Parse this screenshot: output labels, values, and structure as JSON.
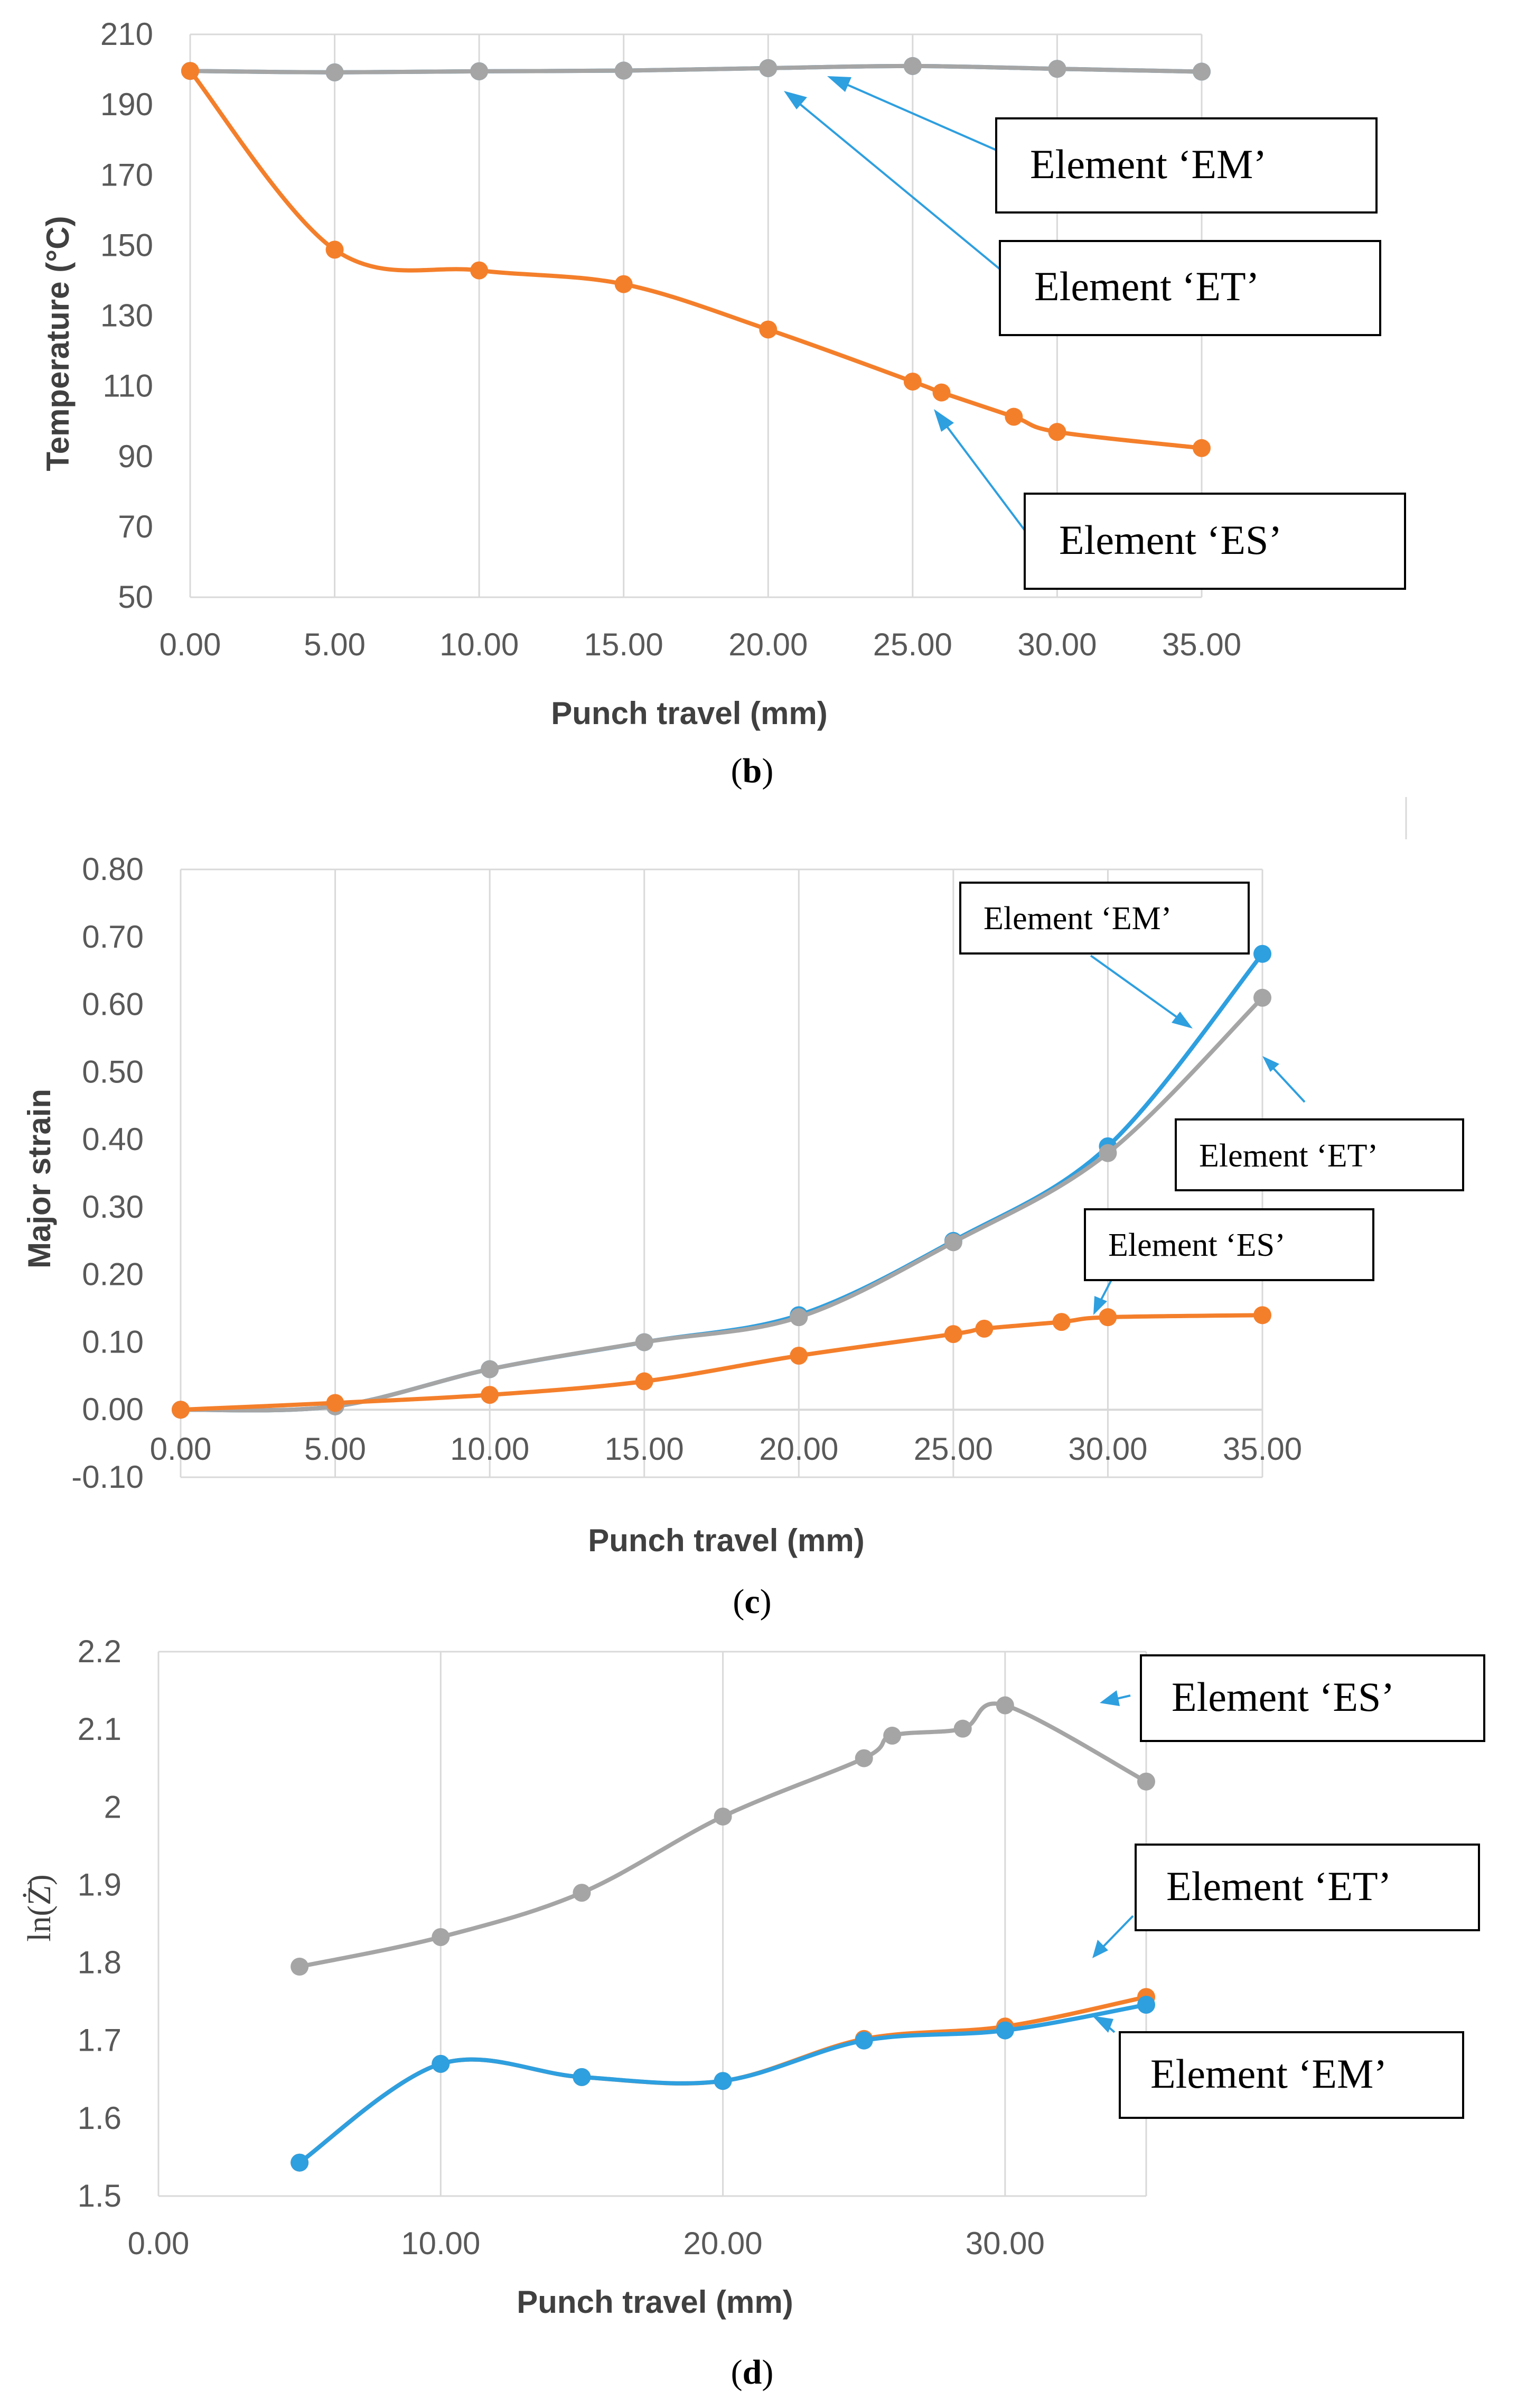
{
  "colors": {
    "em": "#2e9fdf",
    "et": "#a5a5a5",
    "es": "#f47f2b",
    "grid": "#d9d9d9"
  },
  "chart_data": [
    {
      "type": "line",
      "panel": "b",
      "caption_letter": "b",
      "title": "",
      "xlabel": "Punch travel (mm)",
      "ylabel": "Temperature (°C)",
      "xlim": [
        0,
        35
      ],
      "ylim": [
        50,
        210
      ],
      "xticks": [
        0,
        5,
        10,
        15,
        20,
        25,
        30,
        35
      ],
      "xtick_labels": [
        "0.00",
        "5.00",
        "10.00",
        "15.00",
        "20.00",
        "25.00",
        "30.00",
        "35.00"
      ],
      "yticks": [
        50,
        70,
        90,
        110,
        130,
        150,
        170,
        190,
        210
      ],
      "ytick_labels": [
        "50",
        "70",
        "90",
        "110",
        "130",
        "150",
        "170",
        "190",
        "210"
      ],
      "grid": "vertical",
      "series": [
        {
          "name": "Element 'EM'",
          "color_key": "em",
          "x": [
            0,
            5,
            10,
            15,
            20,
            25,
            30,
            35
          ],
          "y": [
            199.6,
            199.2,
            199.5,
            199.7,
            200.4,
            201.0,
            200.2,
            199.4
          ]
        },
        {
          "name": "Element 'ET'",
          "color_key": "et",
          "x": [
            0,
            5,
            10,
            15,
            20,
            25,
            30,
            35
          ],
          "y": [
            199.6,
            199.2,
            199.5,
            199.7,
            200.4,
            201.0,
            200.2,
            199.4
          ]
        },
        {
          "name": "Element 'ES'",
          "color_key": "es",
          "x": [
            0,
            5,
            10,
            15,
            20,
            25,
            26,
            28.5,
            30,
            35
          ],
          "y": [
            199.6,
            148.8,
            142.9,
            139.0,
            126.1,
            111.3,
            108.2,
            101.3,
            97.0,
            92.4
          ]
        }
      ],
      "annotations": [
        {
          "text": "Element ‘EM’",
          "target": [
            22,
            200.4
          ]
        },
        {
          "text": "Element ‘ET’",
          "target": [
            20.5,
            199.0
          ]
        },
        {
          "text": "Element ‘ES’",
          "target": [
            25.5,
            108.0
          ]
        }
      ]
    },
    {
      "type": "line",
      "panel": "c",
      "caption_letter": "c",
      "title": "",
      "xlabel": "Punch travel (mm)",
      "ylabel": "Major strain",
      "xlim": [
        0,
        35
      ],
      "ylim": [
        -0.1,
        0.8
      ],
      "xticks": [
        0,
        5,
        10,
        15,
        20,
        25,
        30,
        35
      ],
      "xtick_labels": [
        "0.00",
        "5.00",
        "10.00",
        "15.00",
        "20.00",
        "25.00",
        "30.00",
        "35.00"
      ],
      "yticks": [
        -0.1,
        0.0,
        0.1,
        0.2,
        0.3,
        0.4,
        0.5,
        0.6,
        0.7,
        0.8
      ],
      "ytick_labels": [
        "-0.10",
        "0.00",
        "0.10",
        "0.20",
        "0.30",
        "0.40",
        "0.50",
        "0.60",
        "0.70",
        "0.80"
      ],
      "grid": "vertical",
      "series": [
        {
          "name": "Element 'EM'",
          "color_key": "em",
          "x": [
            0,
            5,
            10,
            15,
            20,
            25,
            30,
            35
          ],
          "y": [
            0.0,
            0.005,
            0.06,
            0.1,
            0.14,
            0.25,
            0.39,
            0.675
          ]
        },
        {
          "name": "Element 'ET'",
          "color_key": "et",
          "x": [
            0,
            5,
            10,
            15,
            20,
            25,
            30,
            35
          ],
          "y": [
            0.0,
            0.005,
            0.06,
            0.1,
            0.137,
            0.248,
            0.38,
            0.61
          ]
        },
        {
          "name": "Element 'ES'",
          "color_key": "es",
          "x": [
            0,
            5,
            10,
            15,
            20,
            25,
            26,
            28.5,
            30,
            35
          ],
          "y": [
            0.0,
            0.01,
            0.022,
            0.042,
            0.08,
            0.112,
            0.12,
            0.13,
            0.137,
            0.14
          ]
        }
      ],
      "annotations": [
        {
          "text": "Element ‘EM’",
          "target": [
            32.5,
            0.58
          ]
        },
        {
          "text": "Element ‘ET’",
          "target": [
            34.8,
            0.535
          ]
        },
        {
          "text": "Element ‘ES’",
          "target": [
            29.2,
            0.145
          ]
        }
      ]
    },
    {
      "type": "line",
      "panel": "d",
      "caption_letter": "d",
      "title": "",
      "xlabel": "Punch travel (mm)",
      "ylabel": "ln(Z)",
      "ylabel_display": "ln(Ż̄)",
      "xlim": [
        0,
        35
      ],
      "ylim": [
        1.5,
        2.2
      ],
      "xticks": [
        0,
        10,
        20,
        30
      ],
      "xtick_labels": [
        "0.00",
        "10.00",
        "20.00",
        "30.00"
      ],
      "yticks": [
        1.5,
        1.6,
        1.7,
        1.8,
        1.9,
        2.0,
        2.1,
        2.2
      ],
      "ytick_labels": [
        "1.5",
        "1.6",
        "1.7",
        "1.8",
        "1.9",
        "2",
        "2.1",
        "2.2"
      ],
      "grid": "vertical",
      "series": [
        {
          "name": "Element 'ES'",
          "color_key": "et",
          "x": [
            5,
            10,
            15,
            20,
            25,
            26,
            28.5,
            30,
            35
          ],
          "y": [
            1.795,
            1.833,
            1.89,
            1.988,
            2.063,
            2.092,
            2.101,
            2.131,
            2.033
          ]
        },
        {
          "name": "Element 'ET'",
          "color_key": "es",
          "x": [
            5,
            10,
            15,
            20,
            25,
            30,
            35
          ],
          "y": [
            1.543,
            1.67,
            1.653,
            1.648,
            1.702,
            1.718,
            1.756
          ]
        },
        {
          "name": "Element 'EM'",
          "color_key": "em",
          "x": [
            5,
            10,
            15,
            20,
            25,
            30,
            35
          ],
          "y": [
            1.543,
            1.67,
            1.653,
            1.648,
            1.7,
            1.713,
            1.746
          ]
        }
      ],
      "annotations": [
        {
          "text": "Element ‘ES’",
          "target": [
            33.7,
            2.155
          ]
        },
        {
          "text": "Element ‘ET’",
          "target": [
            33.2,
            1.81
          ]
        },
        {
          "text": "Element ‘EM’",
          "target": [
            33.2,
            1.76
          ]
        }
      ]
    }
  ]
}
